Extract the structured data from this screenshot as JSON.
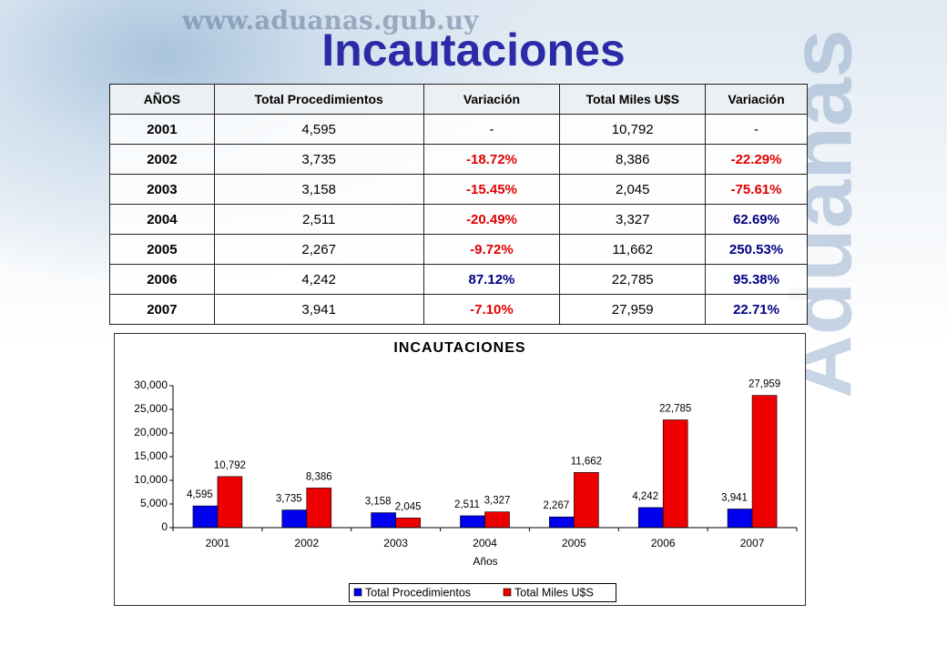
{
  "background": {
    "url": "www.aduanas.gub.uy",
    "brand": "Aduanas"
  },
  "title": "Incautaciones",
  "table": {
    "header": [
      "AÑOS",
      "Total Procedimientos",
      "Variación",
      "Total Miles U$S",
      "Variación"
    ],
    "rows": [
      [
        "2001",
        "4,595",
        "-",
        "10,792",
        "-"
      ],
      [
        "2002",
        "3,735",
        "-18.72%",
        "8,386",
        "-22.29%"
      ],
      [
        "2003",
        "3,158",
        "-15.45%",
        "2,045",
        "-75.61%"
      ],
      [
        "2004",
        "2,511",
        "-20.49%",
        "3,327",
        "62.69%"
      ],
      [
        "2005",
        "2,267",
        "-9.72%",
        "11,662",
        "250.53%"
      ],
      [
        "2006",
        "4,242",
        "87.12%",
        "22,785",
        "95.38%"
      ],
      [
        "2007",
        "3,941",
        "-7.10%",
        "27,959",
        "22.71%"
      ]
    ]
  },
  "chart_data": {
    "type": "bar",
    "title": "INCAUTACIONES",
    "x_label": "Años",
    "categories": [
      "2001",
      "2002",
      "2003",
      "2004",
      "2005",
      "2006",
      "2007"
    ],
    "series": [
      {
        "name": "Total Procedimientos",
        "color": "#0000ee",
        "values": [
          4595,
          3735,
          3158,
          2511,
          2267,
          4242,
          3941
        ],
        "value_labels": [
          "4,595",
          "3,735",
          "3,158",
          "2,511",
          "2,267",
          "4,242",
          "3,941"
        ]
      },
      {
        "name": "Total Miles U$S",
        "color": "#ee0000",
        "values": [
          10792,
          8386,
          2045,
          3327,
          11662,
          22785,
          27959
        ],
        "value_labels": [
          "10,792",
          "8,386",
          "2,045",
          "3,327",
          "11,662",
          "22,785",
          "27,959"
        ]
      }
    ],
    "ylim": [
      0,
      30000
    ],
    "yticks": [
      0,
      {
        "value": 5000,
        "label": "5,000"
      },
      {
        "value": 10000,
        "label": "10,000"
      },
      {
        "value": 15000,
        "label": "15,000"
      },
      {
        "value": 20000,
        "label": "20,000"
      },
      {
        "value": 25000,
        "label": "25,000"
      },
      {
        "value": 30000,
        "label": "30,000"
      }
    ],
    "legend": "bottom"
  }
}
